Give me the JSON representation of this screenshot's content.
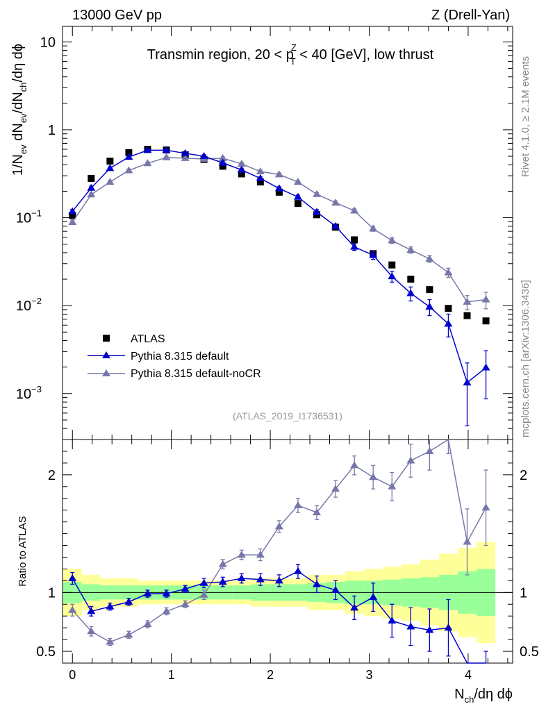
{
  "header": {
    "left": "13000 GeV pp",
    "right": "Z (Drell-Yan)"
  },
  "side_text": {
    "rivet": "Rivet 4.1.0, ≥ 2.1M events",
    "mcplots": "mcplots.cern.ch [arXiv:1306.3436]"
  },
  "chart_data": {
    "type": "scatter",
    "title": "Transmin region, 20 < p_T^Z < 40 [GeV], low thrust",
    "title_parts": {
      "pre": "Transmin region, 20 < p",
      "sup": "Z",
      "sub": "T",
      "post": " < 40 [GeV], low thrust"
    },
    "analysis_id": "(ATLAS_2019_I1736531)",
    "xlabel": "N_ch/dη dϕ",
    "xlabel_parts": {
      "a": "N",
      "sub": "ch",
      "b": "/dη dϕ"
    },
    "ylabel": "1/N_ev dN_ev/dN_ch/dη dϕ",
    "ylabel_parts": {
      "a": "1/N",
      "s1": "ev",
      "b": " dN",
      "s2": "ev",
      "c": "/dN",
      "s3": "ch",
      "d": "/dη dϕ"
    },
    "ratio_ylabel": "Ratio to ATLAS",
    "xlim": [
      -0.1,
      4.45
    ],
    "ylim_main": [
      0.0003,
      15
    ],
    "ylim_ratio": [
      0.4,
      2.3
    ],
    "yscale_main": "log",
    "x_ticks": [
      {
        "value": 0,
        "label": "0"
      },
      {
        "value": 1,
        "label": "1"
      },
      {
        "value": 2,
        "label": "2"
      },
      {
        "value": 3,
        "label": "3"
      },
      {
        "value": 4,
        "label": "4"
      }
    ],
    "main_y_ticks": [
      {
        "value": 0.001,
        "base": "10",
        "exp": "−3"
      },
      {
        "value": 0.01,
        "base": "10",
        "exp": "−2"
      },
      {
        "value": 0.1,
        "base": "10",
        "exp": "−1"
      },
      {
        "value": 1,
        "base": "1",
        "exp": ""
      },
      {
        "value": 10,
        "base": "10",
        "exp": ""
      }
    ],
    "ratio_y_ticks": [
      {
        "value": 0.5,
        "label": "0.5"
      },
      {
        "value": 1,
        "label": "1"
      },
      {
        "value": 2,
        "label": "2"
      }
    ],
    "legend": {
      "placement": "lower-left",
      "entries": [
        {
          "label": "ATLAS",
          "marker": "square",
          "color": "#000000"
        },
        {
          "label": "Pythia 8.315 default",
          "marker": "triangle",
          "color": "#0000cc"
        },
        {
          "label": "Pythia 8.315 default-noCR",
          "marker": "triangle",
          "color": "#7777aa"
        }
      ]
    },
    "x": [
      0.0,
      0.19,
      0.38,
      0.57,
      0.76,
      0.95,
      1.14,
      1.33,
      1.52,
      1.71,
      1.9,
      2.09,
      2.28,
      2.47,
      2.66,
      2.85,
      3.04,
      3.23,
      3.42,
      3.61,
      3.8,
      3.99,
      4.18
    ],
    "bin_halfwidth": 0.095,
    "series": [
      {
        "name": "ATLAS",
        "color": "#000000",
        "marker": "square",
        "values": [
          0.106,
          0.28,
          0.44,
          0.55,
          0.6,
          0.59,
          0.52,
          0.46,
          0.385,
          0.315,
          0.255,
          0.195,
          0.145,
          0.108,
          0.078,
          0.056,
          0.039,
          0.029,
          0.02,
          0.0152,
          0.0093,
          0.0077,
          0.0067
        ],
        "band_green": [
          0.09,
          0.07,
          0.06,
          0.06,
          0.06,
          0.06,
          0.06,
          0.06,
          0.06,
          0.06,
          0.07,
          0.07,
          0.07,
          0.08,
          0.09,
          0.1,
          0.1,
          0.11,
          0.12,
          0.13,
          0.15,
          0.18,
          0.2
        ],
        "band_yellow": [
          0.2,
          0.15,
          0.12,
          0.12,
          0.1,
          0.1,
          0.1,
          0.1,
          0.1,
          0.1,
          0.12,
          0.12,
          0.12,
          0.15,
          0.15,
          0.18,
          0.2,
          0.22,
          0.24,
          0.28,
          0.33,
          0.38,
          0.43
        ]
      },
      {
        "name": "Pythia 8.315 default",
        "color": "#0000cc",
        "marker": "triangle",
        "values": [
          0.118,
          0.218,
          0.365,
          0.49,
          0.585,
          0.585,
          0.54,
          0.5,
          0.42,
          0.35,
          0.28,
          0.215,
          0.172,
          0.116,
          0.08,
          0.0465,
          0.0375,
          0.0215,
          0.0138,
          0.0097,
          0.0062,
          0.00133,
          0.00197
        ],
        "errors": [
          0.006,
          0.01,
          0.015,
          0.02,
          0.02,
          0.02,
          0.02,
          0.02,
          0.02,
          0.015,
          0.012,
          0.01,
          0.009,
          0.007,
          0.005,
          0.004,
          0.004,
          0.003,
          0.0025,
          0.002,
          0.0018,
          0.0009,
          0.0011
        ],
        "ratio": [
          1.12,
          0.84,
          0.88,
          0.92,
          0.99,
          0.99,
          1.03,
          1.08,
          1.09,
          1.12,
          1.11,
          1.1,
          1.18,
          1.07,
          1.02,
          0.87,
          0.96,
          0.76,
          0.71,
          0.68,
          0.7,
          0.18,
          0.3
        ],
        "ratio_errors": [
          0.05,
          0.04,
          0.03,
          0.03,
          0.03,
          0.03,
          0.03,
          0.04,
          0.04,
          0.04,
          0.05,
          0.05,
          0.06,
          0.07,
          0.08,
          0.1,
          0.12,
          0.14,
          0.16,
          0.18,
          0.24,
          0.18,
          0.2
        ]
      },
      {
        "name": "Pythia 8.315 default-noCR",
        "color": "#7777aa",
        "marker": "triangle",
        "values": [
          0.089,
          0.183,
          0.255,
          0.345,
          0.415,
          0.485,
          0.475,
          0.465,
          0.475,
          0.41,
          0.335,
          0.31,
          0.255,
          0.185,
          0.148,
          0.12,
          0.075,
          0.055,
          0.043,
          0.034,
          0.0238,
          0.011,
          0.0117
        ],
        "errors": [
          0.005,
          0.008,
          0.01,
          0.012,
          0.015,
          0.018,
          0.018,
          0.018,
          0.018,
          0.015,
          0.013,
          0.012,
          0.01,
          0.008,
          0.007,
          0.006,
          0.005,
          0.004,
          0.0035,
          0.003,
          0.0028,
          0.002,
          0.0025
        ],
        "ratio": [
          0.85,
          0.67,
          0.58,
          0.64,
          0.73,
          0.84,
          0.9,
          0.98,
          1.24,
          1.32,
          1.32,
          1.56,
          1.74,
          1.68,
          1.88,
          2.08,
          1.98,
          1.9,
          2.12,
          2.2,
          2.38,
          1.43,
          1.72
        ],
        "ratio_errors": [
          0.05,
          0.04,
          0.03,
          0.03,
          0.03,
          0.03,
          0.03,
          0.04,
          0.04,
          0.04,
          0.05,
          0.05,
          0.06,
          0.06,
          0.07,
          0.08,
          0.1,
          0.12,
          0.14,
          0.16,
          0.2,
          0.28,
          0.32
        ]
      }
    ]
  }
}
